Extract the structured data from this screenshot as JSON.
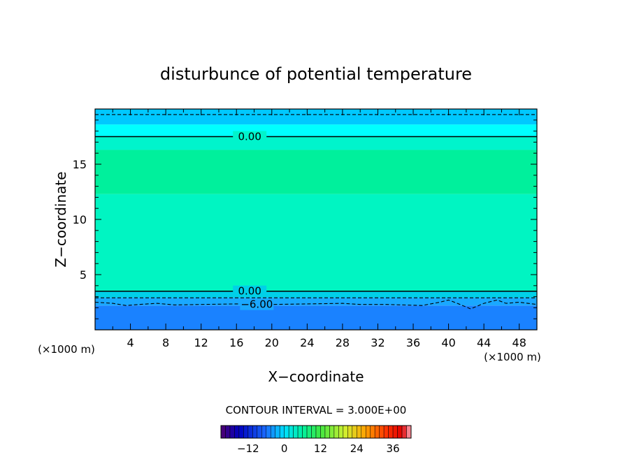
{
  "chart_data": {
    "type": "heatmap",
    "title": "disturbunce of potential temperature",
    "xlabel": "X−coordinate",
    "ylabel": "Z−coordinate",
    "x_unit_label": "(×1000 m)",
    "y_unit_label": "(×1000 m)",
    "xlim": [
      0,
      50
    ],
    "ylim": [
      0,
      20
    ],
    "x_ticks": [
      4,
      8,
      12,
      16,
      20,
      24,
      28,
      32,
      36,
      40,
      44,
      48
    ],
    "y_ticks": [
      5,
      10,
      15
    ],
    "color_bands": [
      {
        "z_from": 0,
        "z_to": 2.2,
        "color": "#1a82ff"
      },
      {
        "z_from": 2.2,
        "z_to": 2.9,
        "color": "#1aa8ff"
      },
      {
        "z_from": 2.9,
        "z_to": 3.5,
        "color": "#00d0e8"
      },
      {
        "z_from": 3.5,
        "z_to": 12.3,
        "color": "#00f5c2"
      },
      {
        "z_from": 12.3,
        "z_to": 16.3,
        "color": "#00f09c"
      },
      {
        "z_from": 16.3,
        "z_to": 17.5,
        "color": "#00f4cc"
      },
      {
        "z_from": 17.5,
        "z_to": 18.6,
        "color": "#00ffff"
      },
      {
        "z_from": 18.6,
        "z_to": 20,
        "color": "#00c8ff"
      }
    ],
    "contours": [
      {
        "value": 0.0,
        "label": "0.00",
        "style": "solid",
        "z": 17.5,
        "label_x": 17.5
      },
      {
        "value": 0.0,
        "label": "0.00",
        "style": "solid",
        "z": 3.5,
        "label_x": 17.5
      },
      {
        "value": -3.0,
        "label": "",
        "style": "dashed",
        "z": 2.9,
        "label_x": null
      },
      {
        "value": -3.0,
        "label": "",
        "style": "dashed",
        "z": 19.5,
        "label_x": null
      },
      {
        "value": -6.0,
        "label": "−6.00",
        "style": "dashed",
        "z": 2.3,
        "label_x": 18.3,
        "points": [
          [
            0,
            2.5
          ],
          [
            2,
            2.4
          ],
          [
            3.5,
            2.2
          ],
          [
            5,
            2.3
          ],
          [
            7,
            2.4
          ],
          [
            9,
            2.25
          ],
          [
            12,
            2.3
          ],
          [
            16,
            2.35
          ],
          [
            20,
            2.3
          ],
          [
            24,
            2.35
          ],
          [
            28,
            2.4
          ],
          [
            30,
            2.3
          ],
          [
            33,
            2.3
          ],
          [
            37,
            2.2
          ],
          [
            39,
            2.5
          ],
          [
            40,
            2.7
          ],
          [
            41,
            2.4
          ],
          [
            42.5,
            1.9
          ],
          [
            44,
            2.4
          ],
          [
            45.5,
            2.7
          ],
          [
            46.5,
            2.4
          ],
          [
            48,
            2.5
          ],
          [
            50,
            2.3
          ]
        ]
      }
    ],
    "contour_interval_label": "CONTOUR INTERVAL = 3.000E+00",
    "colorbar": {
      "min": -21,
      "max": 42,
      "step": 1.5,
      "ticks": [
        -12,
        0,
        12,
        24,
        36
      ],
      "stops": [
        {
          "v": -21,
          "color": "#500070"
        },
        {
          "v": -15,
          "color": "#0000c0"
        },
        {
          "v": -6,
          "color": "#1a6cff"
        },
        {
          "v": 0,
          "color": "#00e0ff"
        },
        {
          "v": 6,
          "color": "#00f0a0"
        },
        {
          "v": 12,
          "color": "#40e840"
        },
        {
          "v": 20,
          "color": "#d0f030"
        },
        {
          "v": 27,
          "color": "#ffa000"
        },
        {
          "v": 34,
          "color": "#ff3000"
        },
        {
          "v": 39,
          "color": "#e00000"
        },
        {
          "v": 42,
          "color": "#ffb0c0"
        }
      ]
    }
  }
}
